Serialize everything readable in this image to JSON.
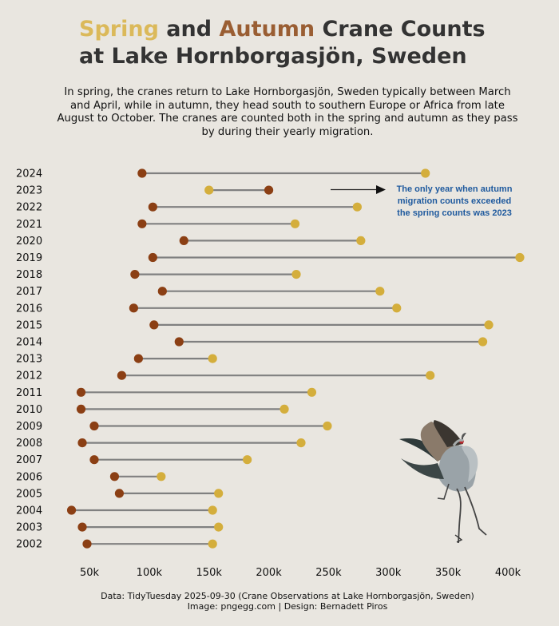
{
  "title": {
    "part1": "Spring",
    "part2": " and ",
    "part3": "Autumn",
    "part4": " Crane Counts",
    "line2": "at Lake Hornborgasjön, Sweden"
  },
  "subtitle": "In spring, the cranes return to Lake Hornborgasjön, Sweden typically between March and April, while in autumn, they head south to southern Europe or Africa from late August to October. The cranes are counted both in the spring and autumn as they pass by during their yearly migration.",
  "annotation": [
    "The only year when autumn",
    "migration counts exceeded",
    "the spring counts was 2023"
  ],
  "footer": {
    "line1": "Data: TidyTuesday 2025-09-30 (Crane Observations at Lake Hornborgasjön, Sweden)",
    "line2": "Image: pngegg.com | Design: Bernadett Piros"
  },
  "colors": {
    "background": "#e9e6e0",
    "spring": "#d4ae3c",
    "autumn": "#8b3f14",
    "line": "#808080",
    "annotation": "#1f5a9e"
  },
  "chart_data": {
    "type": "dumbbell",
    "title": "Spring and Autumn Crane Counts at Lake Hornborgasjön, Sweden",
    "xlim": [
      25000,
      415000
    ],
    "x_ticks": [
      50000,
      100000,
      150000,
      200000,
      250000,
      300000,
      350000,
      400000
    ],
    "x_tick_labels": [
      "50k",
      "100k",
      "150k",
      "200k",
      "250k",
      "300k",
      "350k",
      "400k"
    ],
    "grid": false,
    "categories": [
      "2024",
      "2023",
      "2022",
      "2021",
      "2020",
      "2019",
      "2018",
      "2017",
      "2016",
      "2015",
      "2014",
      "2013",
      "2012",
      "2011",
      "2010",
      "2009",
      "2008",
      "2007",
      "2006",
      "2005",
      "2004",
      "2003",
      "2002"
    ],
    "series": [
      {
        "name": "Spring",
        "values": [
          331000,
          150000,
          274000,
          222000,
          277000,
          410000,
          223000,
          293000,
          307000,
          384000,
          379000,
          153000,
          335000,
          236000,
          213000,
          249000,
          227000,
          182000,
          110000,
          158000,
          153000,
          158000,
          153000
        ]
      },
      {
        "name": "Autumn",
        "values": [
          94000,
          200000,
          103000,
          94000,
          129000,
          103000,
          88000,
          111000,
          87000,
          104000,
          125000,
          91000,
          77000,
          43000,
          43000,
          54000,
          44000,
          54000,
          71000,
          75000,
          35000,
          44000,
          48000
        ]
      }
    ]
  }
}
